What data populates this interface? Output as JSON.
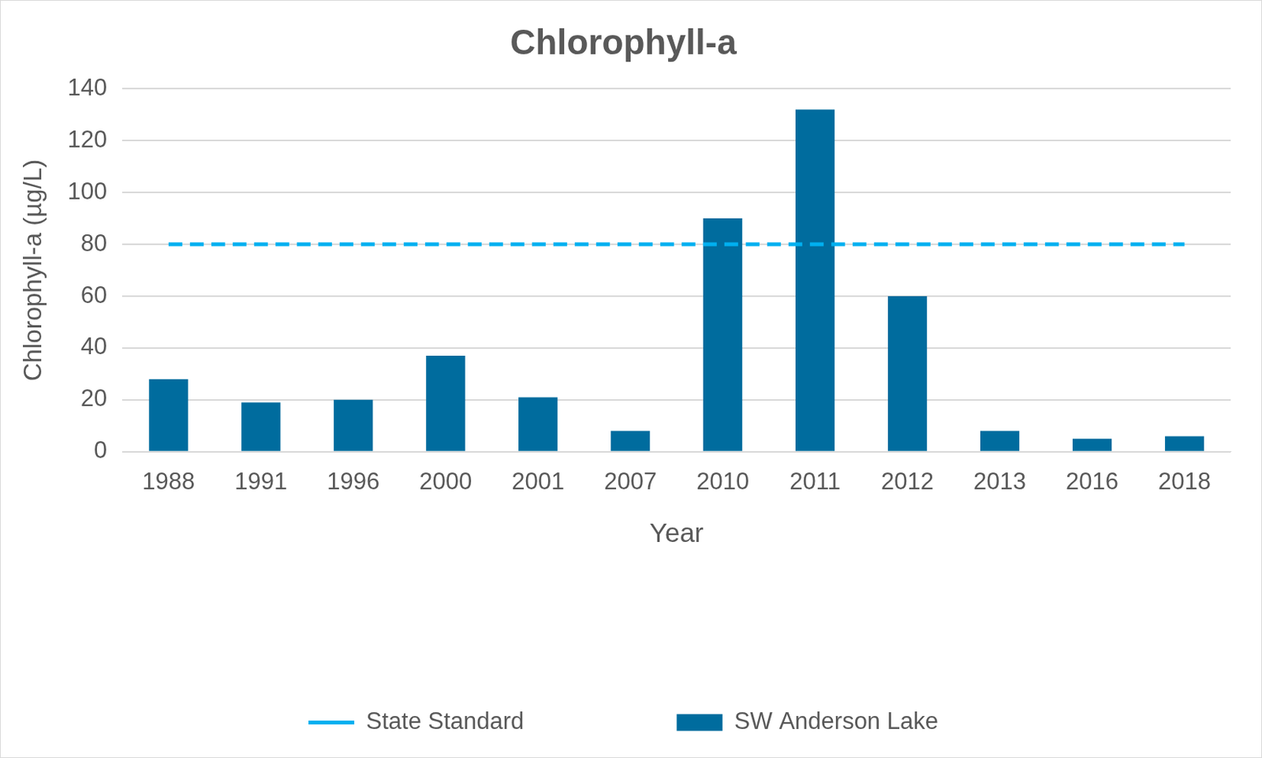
{
  "chart_data": {
    "type": "bar",
    "title": "Chlorophyll-a",
    "x_label": "Year",
    "y_label": "Chlorophyll-a (µg/L)",
    "categories": [
      "1988",
      "1991",
      "1996",
      "2000",
      "2001",
      "2007",
      "2010",
      "2011",
      "2012",
      "2013",
      "2016",
      "2018"
    ],
    "series": [
      {
        "name": "SW Anderson Lake",
        "type": "bar",
        "color": "#006c9e",
        "values": [
          28,
          19,
          20,
          37,
          21,
          8,
          90,
          132,
          60,
          8,
          5,
          6
        ]
      },
      {
        "name": "State Standard",
        "type": "line",
        "color": "#00b0f0",
        "line_style": "dashed",
        "values": [
          80,
          80,
          80,
          80,
          80,
          80,
          80,
          80,
          80,
          80,
          80,
          80
        ]
      }
    ],
    "ylim": [
      0,
      140
    ],
    "yticks": [
      0,
      20,
      40,
      60,
      80,
      100,
      120,
      140
    ],
    "grid": true,
    "legend": "bottom"
  }
}
